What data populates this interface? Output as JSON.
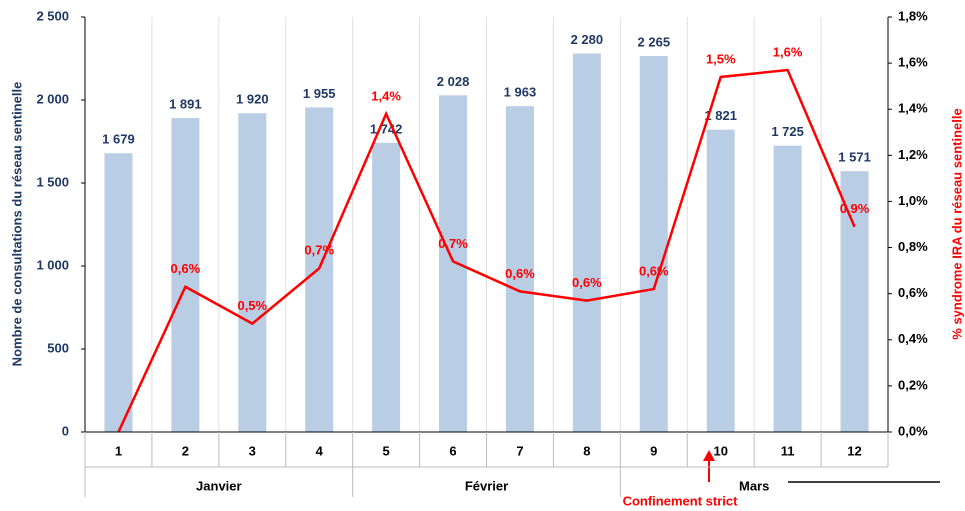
{
  "chart_data": {
    "type": "bar+line",
    "categories": [
      "1",
      "2",
      "3",
      "4",
      "5",
      "6",
      "7",
      "8",
      "9",
      "10",
      "11",
      "12"
    ],
    "month_labels": [
      "Janvier",
      "Février",
      "Mars"
    ],
    "ylabel": "Nombre de consultations du réseau sentinelle",
    "y2label": "% syndrome IRA du réseau sentinelle",
    "annotations": [
      {
        "text": "Confinement strict"
      }
    ],
    "series": [
      {
        "type": "bar",
        "color": "#b9cde5",
        "axis": "y",
        "values": [
          1679,
          1891,
          1920,
          1955,
          1742,
          2028,
          1963,
          2280,
          2265,
          1821,
          1725,
          1571
        ],
        "value_labels": [
          "1 679",
          "1 891",
          "1 920",
          "1 955",
          "1 742",
          "2 028",
          "1 963",
          "2 280",
          "2 265",
          "1 821",
          "1 725",
          "1 571"
        ]
      },
      {
        "type": "line",
        "color": "#ff0000",
        "axis": "y2",
        "values": [
          0.0,
          0.63,
          0.47,
          0.71,
          1.38,
          0.74,
          0.61,
          0.57,
          0.62,
          1.54,
          1.57,
          0.89
        ],
        "value_labels": [
          null,
          "0,6%",
          "0,5%",
          "0,7%",
          "1,4%",
          "0,7%",
          "0,6%",
          "0,6%",
          "0,6%",
          "1,5%",
          "1,6%",
          "0,9%"
        ]
      }
    ],
    "ylim": [
      0,
      2500
    ],
    "yticks": [
      0,
      500,
      {
        "value": 1000,
        "label": "1 000"
      },
      {
        "value": 1500,
        "label": "1 500"
      },
      {
        "value": 2000,
        "label": "2 000"
      },
      {
        "value": 2500,
        "label": "2 500"
      }
    ],
    "y2lim": [
      0,
      1.8
    ],
    "y2ticks": [
      {
        "value": 0,
        "label": "0,0%"
      },
      {
        "value": 0.2,
        "label": "0,2%"
      },
      {
        "value": 0.4,
        "label": "0,4%"
      },
      {
        "value": 0.6,
        "label": "0,6%"
      },
      {
        "value": 0.8,
        "label": "0,8%"
      },
      {
        "value": 1.0,
        "label": "1,0%"
      },
      {
        "value": 1.2,
        "label": "1,2%"
      },
      {
        "value": 1.4,
        "label": "1,4%"
      },
      {
        "value": 1.6,
        "label": "1,6%"
      },
      {
        "value": 1.8,
        "label": "1,8%"
      }
    ]
  }
}
